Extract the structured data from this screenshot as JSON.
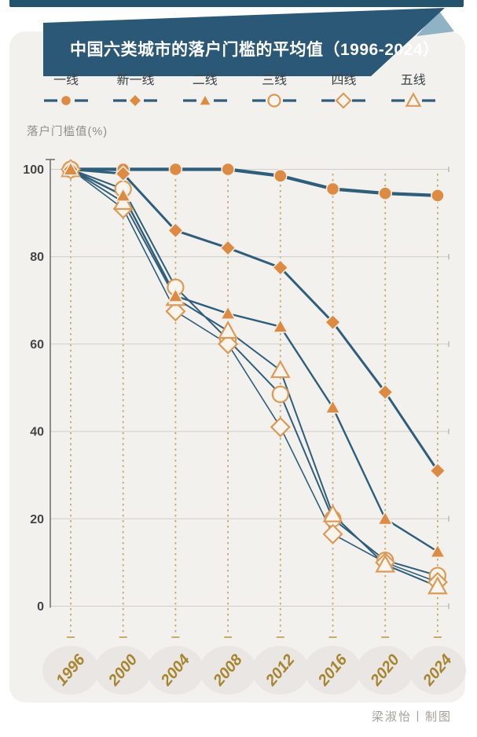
{
  "title": "中国六类城市的落户门槛的平均值（1996-2024）",
  "y_axis_label": "落户门槛值(%)",
  "credit": "梁淑怡丨制图",
  "colors": {
    "banner": "#2b5877",
    "banner_fold": "#8fb2c5",
    "line": "#2f5e7b",
    "marker_fill": "#dd8a43",
    "marker_open_fill": "#f9f5ee",
    "marker_open_stroke": "#dc9a57",
    "dashed_guides": "#c3a557",
    "year_label": "#a6852e",
    "year_circle": "#e9e6e3",
    "panel_background": "#f3f1ee"
  },
  "chart_data": {
    "type": "line",
    "title": "中国六类城市的落户门槛的平均值（1996-2024）",
    "ylabel": "落户门槛值(%)",
    "x": [
      1996,
      2000,
      2004,
      2008,
      2012,
      2016,
      2020,
      2024
    ],
    "ylim": [
      0,
      100
    ],
    "yticks": [
      100,
      80,
      60,
      40,
      20,
      0
    ],
    "grid": true,
    "legend_position": "top",
    "series": [
      {
        "name": "一线",
        "marker": "circle",
        "filled": true,
        "values": [
          100,
          100,
          100,
          100,
          98.5,
          95.5,
          94.5,
          94
        ]
      },
      {
        "name": "新一线",
        "marker": "diamond",
        "filled": true,
        "values": [
          100,
          99,
          86,
          82,
          77.5,
          65,
          49,
          31
        ]
      },
      {
        "name": "二线",
        "marker": "triangle",
        "filled": true,
        "values": [
          100,
          94,
          71,
          67,
          64,
          45.5,
          20,
          12.5
        ]
      },
      {
        "name": "三线",
        "marker": "circle",
        "filled": false,
        "values": [
          100,
          95.5,
          73,
          61,
          48.5,
          20,
          10.5,
          7
        ]
      },
      {
        "name": "四线",
        "marker": "diamond",
        "filled": false,
        "values": [
          100,
          91,
          67.5,
          60,
          41,
          16.5,
          10,
          5.5
        ]
      },
      {
        "name": "五线",
        "marker": "triangle",
        "filled": false,
        "values": [
          100,
          92.5,
          70.5,
          63,
          54,
          21,
          9.5,
          4.5
        ]
      }
    ]
  }
}
